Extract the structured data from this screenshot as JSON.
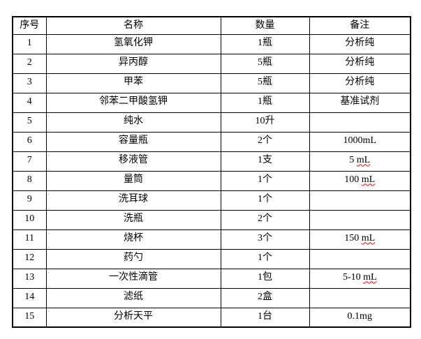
{
  "page": {
    "background_color": "#ffffff",
    "text_color": "#000000",
    "border_color": "#000000",
    "spellcheck_underline_color": "#ff0000"
  },
  "table": {
    "header": {
      "no": "序号",
      "name": "名称",
      "qty": "数量",
      "remark": "备注"
    },
    "rows": [
      {
        "no": "1",
        "name": "氢氧化钾",
        "qty": "1瓶",
        "remark": "分析纯",
        "remark_wavy": ""
      },
      {
        "no": "2",
        "name": "异丙醇",
        "qty": "5瓶",
        "remark": "分析纯",
        "remark_wavy": ""
      },
      {
        "no": "3",
        "name": "甲苯",
        "qty": "5瓶",
        "remark": "分析纯",
        "remark_wavy": ""
      },
      {
        "no": "4",
        "name": "邻苯二甲酸氢钾",
        "qty": "1瓶",
        "remark": "基准试剂",
        "remark_wavy": ""
      },
      {
        "no": "5",
        "name": "纯水",
        "qty": "10升",
        "remark": "",
        "remark_wavy": ""
      },
      {
        "no": "6",
        "name": "容量瓶",
        "qty": "2个",
        "remark": "1000mL",
        "remark_wavy": ""
      },
      {
        "no": "7",
        "name": "移液管",
        "qty": "1支",
        "remark": "5 ",
        "remark_wavy": "mL"
      },
      {
        "no": "8",
        "name": "量筒",
        "qty": "1个",
        "remark": "100 ",
        "remark_wavy": "mL"
      },
      {
        "no": "9",
        "name": "洗耳球",
        "qty": "1个",
        "remark": "",
        "remark_wavy": ""
      },
      {
        "no": "10",
        "name": "洗瓶",
        "qty": "2个",
        "remark": "",
        "remark_wavy": ""
      },
      {
        "no": "11",
        "name": "烧杯",
        "qty": "3个",
        "remark": "150 ",
        "remark_wavy": "mL"
      },
      {
        "no": "12",
        "name": "药勺",
        "qty": "1个",
        "remark": "",
        "remark_wavy": ""
      },
      {
        "no": "13",
        "name": "一次性滴管",
        "qty": "1包",
        "remark": "5-10 ",
        "remark_wavy": "mL"
      },
      {
        "no": "14",
        "name": "滤纸",
        "qty": "2盒",
        "remark": "",
        "remark_wavy": ""
      },
      {
        "no": "15",
        "name": "分析天平",
        "qty": "1台",
        "remark": "0.1mg",
        "remark_wavy": ""
      }
    ]
  }
}
